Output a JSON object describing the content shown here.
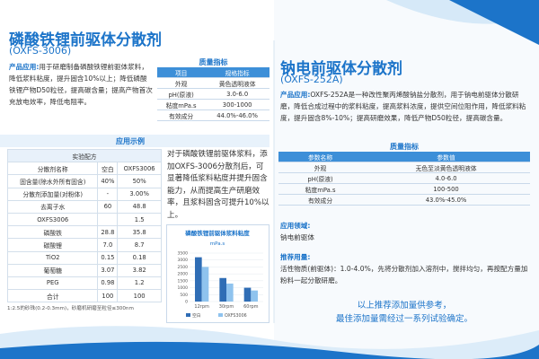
{
  "left": {
    "title": "磷酸铁锂前驱体分散剂",
    "model": "(OXFS-3006)",
    "application": {
      "label": "产品应用:",
      "text": "用于研磨制备磷酸铁锂前驱体浆料，降低浆料粘度，提升固含10%以上；降低磷酸铁锂产物D50粒径，提高碳含量；提高产物首次充放电效率，降低电阻率。"
    },
    "quality": {
      "title": "质量指标",
      "header": [
        "项目",
        "规格指标"
      ],
      "rows": [
        [
          "外观",
          "黄色透明液体"
        ],
        [
          "pH(原液)",
          "3.0-6.0"
        ],
        [
          "粘度mPa.s",
          "300-1000"
        ],
        [
          "有效成分",
          "44.0%-46.0%"
        ]
      ]
    },
    "example": {
      "title": "应用示例",
      "table": {
        "caption": "实验配方",
        "header": [
          "分散剂名称",
          "空白",
          "OXFS3006"
        ],
        "rows": [
          [
            "固含量(除水外所有固含)",
            "40%",
            "50%"
          ],
          [
            "分散剂添加量(对粉体)",
            "-",
            "3.00%"
          ],
          [
            "去离子水",
            "60",
            "48.8"
          ],
          [
            "OXFS3006",
            null,
            "1.5"
          ],
          [
            "磷酸铁",
            "28.8",
            "35.8"
          ],
          [
            "碳酸锂",
            "7.0",
            "8.7"
          ],
          [
            "TiO2",
            "0.15",
            "0.18"
          ],
          [
            "葡萄糖",
            "3.07",
            "3.82"
          ],
          [
            "PEG",
            "0.98",
            "1.2"
          ],
          [
            "合计",
            "100",
            "100"
          ]
        ]
      },
      "note": "1:2.5的砂珠(0.2-0.3mm)，砂磨机研磨至粒径≤300nm",
      "description": "对于磷酸铁锂前驱体浆料，添加OXFS-3006分散剂后，可显著降低浆料粘度并提升固含能力，从而提高生产研磨效率，且浆料固含可提升10%以上。"
    },
    "chart": {
      "type": "bar",
      "title": "磷酸铁锂前驱体浆料粘度",
      "y_label": "mPa.s",
      "categories": [
        "12rpm",
        "30rpm",
        "60rpm"
      ],
      "series": [
        {
          "name": "空白",
          "color": "#2f6db5",
          "values": [
            3200,
            1700,
            1000
          ]
        },
        {
          "name": "OXFS3006",
          "color": "#8fc3ee",
          "values": [
            2500,
            1300,
            800
          ]
        }
      ],
      "ylim": [
        0,
        3500
      ],
      "yticks": [
        0,
        500,
        1000,
        1500,
        2000,
        2500,
        3000,
        3500
      ]
    }
  },
  "right": {
    "title": "钠电前驱体分散剂",
    "model": "(OXFS-252A)",
    "application": {
      "label": "产品应用:",
      "text": "OXFS-252A是一种改性聚丙烯酸钠盐分散剂，用于钠电前驱体分散研磨，降低合成过程中的浆料粘度，提高浆料浓度，提供空间位阻作用，降低浆料粘度，提升固含8%-10%；提高研磨效果，降低产物D50粒径，提高碳含量。"
    },
    "quality": {
      "title": "质量指标",
      "header": [
        "参数名称",
        "参数值"
      ],
      "rows": [
        [
          "外观",
          "无色至淡黄色透明液体"
        ],
        [
          "pH(原液)",
          "4.0-6.0"
        ],
        [
          "粘度mPa.s",
          "100-500"
        ],
        [
          "有效成分",
          "43.0%-45.0%"
        ]
      ]
    },
    "field": {
      "label": "应用领域:",
      "text": "钠电前驱体"
    },
    "dosage": {
      "label": "推荐用量:",
      "text": "活性物质(前驱体)：1.0-4.0%，先将分散剂加入溶剂中，搅拌均匀，再按配方量加粉料一起分散研磨。"
    },
    "closing": [
      "以上推荐添加量供参考，",
      "最佳添加量需经过一系列试验确定。"
    ]
  }
}
